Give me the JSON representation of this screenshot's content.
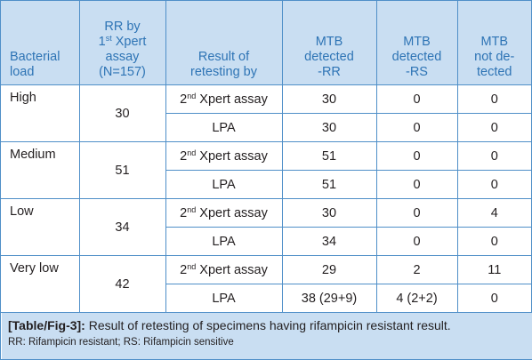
{
  "headers": {
    "load": [
      "Bacterial",
      "load"
    ],
    "rr": [
      "RR by",
      "1st Xpert",
      "assay",
      "(N=157)"
    ],
    "method": [
      "Result of",
      "retesting by"
    ],
    "rr_detected": [
      "MTB",
      "detected",
      "-RR"
    ],
    "rs_detected": [
      "MTB",
      "detected",
      "-RS"
    ],
    "not_detected": [
      "MTB",
      "not de-",
      "tected"
    ]
  },
  "rows": [
    {
      "load": "High",
      "rr": "30",
      "xpert": {
        "method_pre": "2",
        "method_sup": "nd",
        "method_post": " Xpert assay",
        "rr": "30",
        "rs": "0",
        "nd": "0"
      },
      "lpa": {
        "method": "LPA",
        "rr": "30",
        "rs": "0",
        "nd": "0"
      }
    },
    {
      "load": "Medium",
      "rr": "51",
      "xpert": {
        "method_pre": "2",
        "method_sup": "nd",
        "method_post": " Xpert assay",
        "rr": "51",
        "rs": "0",
        "nd": "0"
      },
      "lpa": {
        "method": "LPA",
        "rr": "51",
        "rs": "0",
        "nd": "0"
      }
    },
    {
      "load": "Low",
      "rr": "34",
      "xpert": {
        "method_pre": "2",
        "method_sup": "nd",
        "method_post": " Xpert assay",
        "rr": "30",
        "rs": "0",
        "nd": "4"
      },
      "lpa": {
        "method": "LPA",
        "rr": "34",
        "rs": "0",
        "nd": "0"
      }
    },
    {
      "load": "Very low",
      "rr": "42",
      "xpert": {
        "method_pre": "2",
        "method_sup": "nd",
        "method_post": " Xpert assay",
        "rr": "29",
        "rs": "2",
        "nd": "11"
      },
      "lpa": {
        "method": "LPA",
        "rr": "38 (29+9)",
        "rs": "4 (2+2)",
        "nd": "0"
      }
    }
  ],
  "caption": {
    "label": "[Table/Fig-3]:",
    "text": " Result of retesting of specimens having  rifampicin resistant result.",
    "note": "RR: Rifampicin resistant; RS: Rifampicin sensitive"
  },
  "colors": {
    "header_bg": "#c9def2",
    "header_text": "#2e74b5",
    "border": "#4f8fc8"
  }
}
